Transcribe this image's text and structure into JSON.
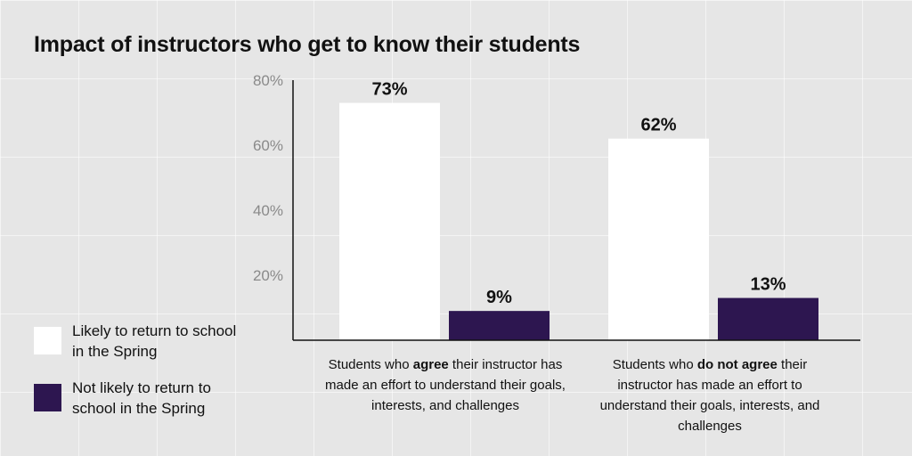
{
  "title": "Impact of instructors who get to know their students",
  "legend": [
    {
      "label": "Likely to return to school in the Spring",
      "color": "#ffffff"
    },
    {
      "label": "Not likely to return to school in the Spring",
      "color": "#2d1650"
    }
  ],
  "categories": [
    {
      "pre": "Students who ",
      "bold": "agree",
      "post": " their instructor has made an effort to understand their goals, interests, and challenges"
    },
    {
      "pre": "Students who ",
      "bold": "do not agree",
      "post": " their instructor has made an effort to understand their goals, interests, and challenges"
    }
  ],
  "chart_data": {
    "type": "bar",
    "title": "Impact of instructors who get to know their students",
    "categories": [
      "Students who agree their instructor has made an effort to understand their goals, interests, and challenges",
      "Students who do not agree their instructor has made an effort to understand their goals, interests, and challenges"
    ],
    "series": [
      {
        "name": "Likely to return to school in the Spring",
        "values": [
          73,
          62
        ],
        "labels": [
          "73%",
          "62%"
        ],
        "color": "#ffffff"
      },
      {
        "name": "Not likely to return to school in the Spring",
        "values": [
          9,
          13
        ],
        "labels": [
          "9%",
          "13%"
        ],
        "color": "#2d1650"
      }
    ],
    "yticks": [
      "20%",
      "40%",
      "60%",
      "80%"
    ],
    "ytick_values": [
      20,
      40,
      60,
      80
    ],
    "ylim": [
      0,
      80
    ],
    "grid": false,
    "legend_position": "left"
  }
}
